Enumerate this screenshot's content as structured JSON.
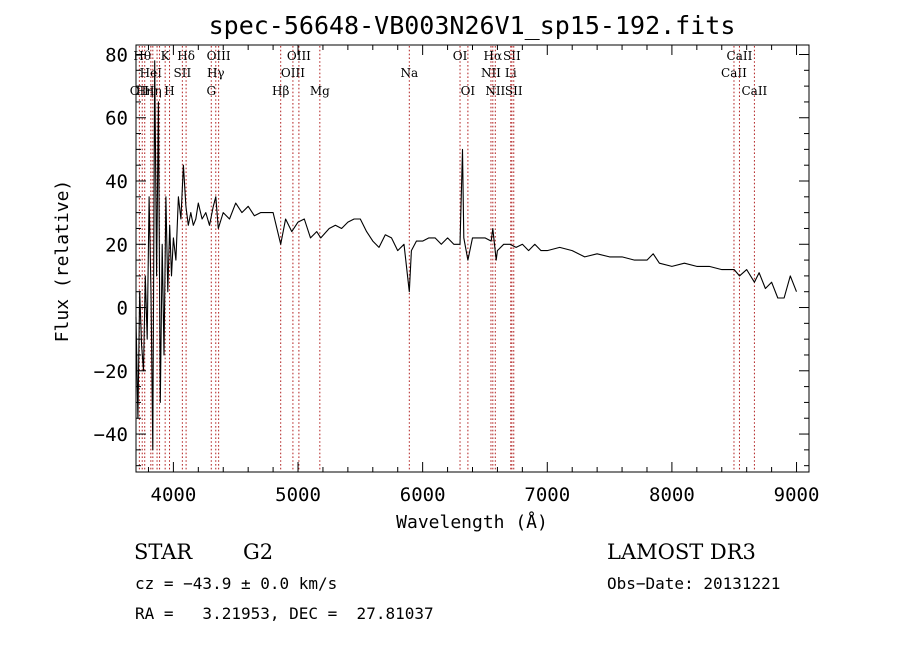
{
  "chart_data": {
    "type": "line",
    "title": "spec-56648-VB003N26V1_sp15-192.fits",
    "xlabel": "Wavelength (Å)",
    "ylabel": "Flux (relative)",
    "xlim": [
      3700,
      9100
    ],
    "ylim": [
      -52,
      83
    ],
    "xticks": [
      {
        "v": 4000,
        "label": "4000"
      },
      {
        "v": 5000,
        "label": "5000"
      },
      {
        "v": 6000,
        "label": "6000"
      },
      {
        "v": 7000,
        "label": "7000"
      },
      {
        "v": 8000,
        "label": "8000"
      },
      {
        "v": 9000,
        "label": "9000"
      }
    ],
    "yticks": [
      {
        "v": 80,
        "label": "80"
      },
      {
        "v": 60,
        "label": "60"
      },
      {
        "v": 40,
        "label": "40"
      },
      {
        "v": 20,
        "label": "20"
      },
      {
        "v": 0,
        "label": "0"
      },
      {
        "v": -20,
        "label": "−20"
      },
      {
        "v": -40,
        "label": "−40"
      }
    ],
    "series": [
      {
        "color": "#000000",
        "x": [
          3700,
          3715,
          3730,
          3745,
          3760,
          3775,
          3790,
          3805,
          3820,
          3835,
          3850,
          3865,
          3880,
          3895,
          3910,
          3925,
          3940,
          3955,
          3970,
          3985,
          4000,
          4020,
          4040,
          4060,
          4080,
          4100,
          4120,
          4140,
          4160,
          4180,
          4200,
          4230,
          4260,
          4290,
          4320,
          4340,
          4360,
          4400,
          4450,
          4500,
          4550,
          4600,
          4650,
          4700,
          4750,
          4800,
          4861,
          4900,
          4950,
          5000,
          5050,
          5100,
          5150,
          5183,
          5250,
          5300,
          5350,
          5400,
          5450,
          5500,
          5550,
          5600,
          5650,
          5700,
          5750,
          5800,
          5850,
          5893,
          5910,
          5950,
          6000,
          6050,
          6100,
          6150,
          6200,
          6250,
          6300,
          6320,
          6330,
          6363,
          6400,
          6450,
          6500,
          6550,
          6563,
          6590,
          6600,
          6650,
          6700,
          6750,
          6800,
          6850,
          6900,
          6950,
          7000,
          7100,
          7200,
          7300,
          7400,
          7500,
          7600,
          7700,
          7800,
          7850,
          7900,
          8000,
          8100,
          8200,
          8300,
          8400,
          8500,
          8542,
          8600,
          8662,
          8700,
          8750,
          8800,
          8850,
          8900,
          8950,
          9000
        ],
        "y": [
          -3,
          -35,
          5,
          -12,
          -20,
          10,
          -10,
          35,
          5,
          -45,
          78,
          10,
          65,
          -30,
          20,
          -15,
          35,
          5,
          26,
          10,
          22,
          15,
          35,
          28,
          45,
          32,
          26,
          30,
          26,
          28,
          33,
          28,
          30,
          26,
          32,
          35,
          25,
          30,
          28,
          33,
          30,
          32,
          29,
          30,
          30,
          30,
          20,
          28,
          24,
          27,
          28,
          22,
          24,
          22,
          25,
          26,
          25,
          27,
          28,
          28,
          24,
          21,
          19,
          23,
          22,
          18,
          20,
          5,
          18,
          21,
          21,
          22,
          22,
          20,
          22,
          20,
          20,
          50,
          22,
          15,
          22,
          22,
          22,
          21,
          25,
          15,
          18,
          20,
          20,
          19,
          20,
          18,
          20,
          18,
          18,
          19,
          18,
          16,
          17,
          16,
          16,
          15,
          15,
          17,
          14,
          13,
          14,
          13,
          13,
          12,
          12,
          10,
          12,
          8,
          11,
          6,
          8,
          3,
          3,
          10,
          5
        ]
      }
    ],
    "lines": [
      {
        "wave": 3727,
        "label": "OII",
        "row": 3
      },
      {
        "wave": 3750,
        "label": "Hθ",
        "row": 1
      },
      {
        "wave": 3770,
        "label": "Hη",
        "row": 3
      },
      {
        "wave": 3819,
        "label": "HeI",
        "row": 2
      },
      {
        "wave": 3835,
        "label": "Hη",
        "row": 3
      },
      {
        "wave": 3869,
        "label": "",
        "row": 0
      },
      {
        "wave": 3889,
        "label": "",
        "row": 0
      },
      {
        "wave": 3934,
        "label": "K",
        "row": 1
      },
      {
        "wave": 3969,
        "label": "H",
        "row": 3
      },
      {
        "wave": 4072,
        "label": "SII",
        "row": 2
      },
      {
        "wave": 4102,
        "label": "Hδ",
        "row": 1
      },
      {
        "wave": 4304,
        "label": "G",
        "row": 3
      },
      {
        "wave": 4340,
        "label": "Hγ",
        "row": 2
      },
      {
        "wave": 4363,
        "label": "OIII",
        "row": 1
      },
      {
        "wave": 4861,
        "label": "Hβ",
        "row": 3
      },
      {
        "wave": 4959,
        "label": "OIII",
        "row": 2
      },
      {
        "wave": 5007,
        "label": "OIII",
        "row": 1
      },
      {
        "wave": 5175,
        "label": "Mg",
        "row": 3
      },
      {
        "wave": 5893,
        "label": "Na",
        "row": 2
      },
      {
        "wave": 6300,
        "label": "OI",
        "row": 1
      },
      {
        "wave": 6363,
        "label": "OI",
        "row": 3
      },
      {
        "wave": 6548,
        "label": "NII",
        "row": 2
      },
      {
        "wave": 6563,
        "label": "Hα",
        "row": 1
      },
      {
        "wave": 6583,
        "label": "NII",
        "row": 3
      },
      {
        "wave": 6707,
        "label": "Li",
        "row": 2
      },
      {
        "wave": 6716,
        "label": "SII",
        "row": 1
      },
      {
        "wave": 6731,
        "label": "SII",
        "row": 3
      },
      {
        "wave": 8498,
        "label": "CaII",
        "row": 2
      },
      {
        "wave": 8542,
        "label": "CaII",
        "row": 1
      },
      {
        "wave": 8662,
        "label": "CaII",
        "row": 3
      }
    ]
  },
  "info": {
    "class_label": "STAR",
    "subclass": "G2",
    "cz": "cz = −43.9 ± 0.0 km/s",
    "coords": "RA =   3.21953, DEC =  27.81037",
    "survey": "LAMOST DR3",
    "obs_date": "Obs−Date: 20131221"
  }
}
